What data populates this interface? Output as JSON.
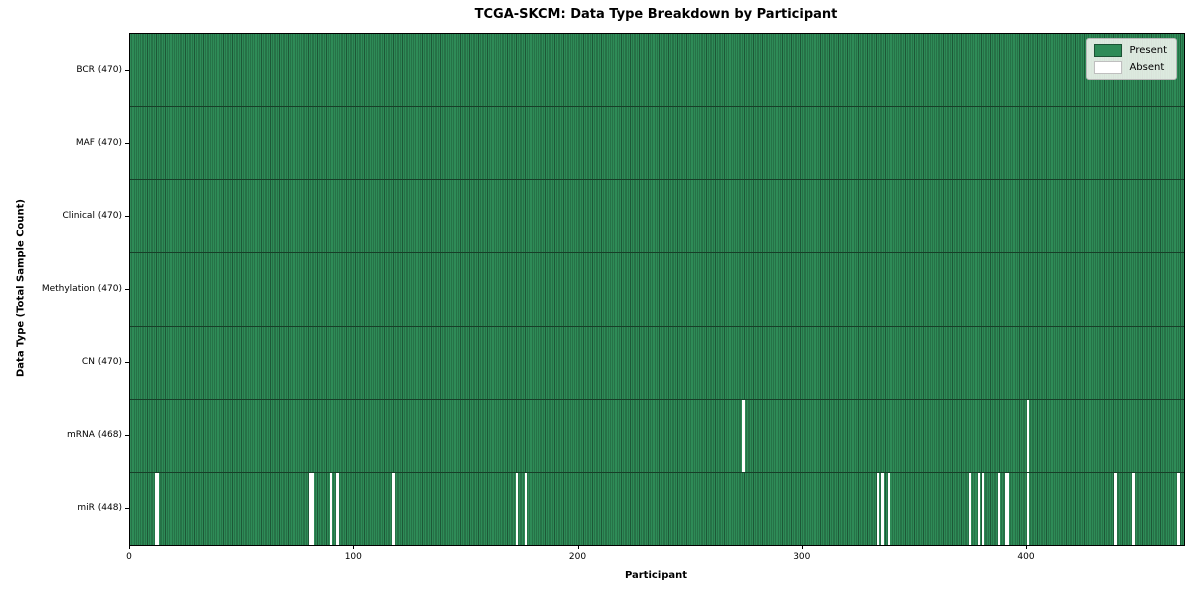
{
  "title": "TCGA-SKCM: Data Type Breakdown by Participant",
  "axes": {
    "xlabel": "Participant",
    "ylabel": "Data Type (Total Sample Count)"
  },
  "legend": {
    "position": "upper right",
    "items": [
      {
        "label": "Present",
        "color": "#2e8b57"
      },
      {
        "label": "Absent",
        "color": "#ffffff"
      }
    ]
  },
  "chart_data": {
    "type": "heatmap",
    "title": "TCGA-SKCM: Data Type Breakdown by Participant",
    "xlabel": "Participant",
    "ylabel": "Data Type (Total Sample Count)",
    "x_range": [
      0,
      470
    ],
    "x_ticks": [
      0,
      100,
      200,
      300,
      400
    ],
    "total_participants": 470,
    "grid": false,
    "colors": {
      "present": "#2e8b57",
      "cell_edge": "#1d5837",
      "absent": "#ffffff",
      "spine": "#000000"
    },
    "rows": [
      {
        "label": "BCR (470)",
        "data_type": "BCR",
        "present_count": 470,
        "absent_participants": []
      },
      {
        "label": "MAF (470)",
        "data_type": "MAF",
        "present_count": 470,
        "absent_participants": []
      },
      {
        "label": "Clinical (470)",
        "data_type": "Clinical",
        "present_count": 470,
        "absent_participants": []
      },
      {
        "label": "Methylation (470)",
        "data_type": "Methylation",
        "present_count": 470,
        "absent_participants": []
      },
      {
        "label": "CN (470)",
        "data_type": "CN",
        "present_count": 470,
        "absent_participants": []
      },
      {
        "label": "mRNA (468)",
        "data_type": "mRNA",
        "present_count": 468,
        "absent_participants": [
          273,
          400
        ]
      },
      {
        "label": "miR (448)",
        "data_type": "miR",
        "present_count": 448,
        "absent_participants": [
          11,
          12,
          80,
          81,
          89,
          92,
          117,
          172,
          176,
          333,
          335,
          338,
          374,
          378,
          380,
          387,
          390,
          391,
          400,
          439,
          447,
          467
        ]
      }
    ]
  }
}
